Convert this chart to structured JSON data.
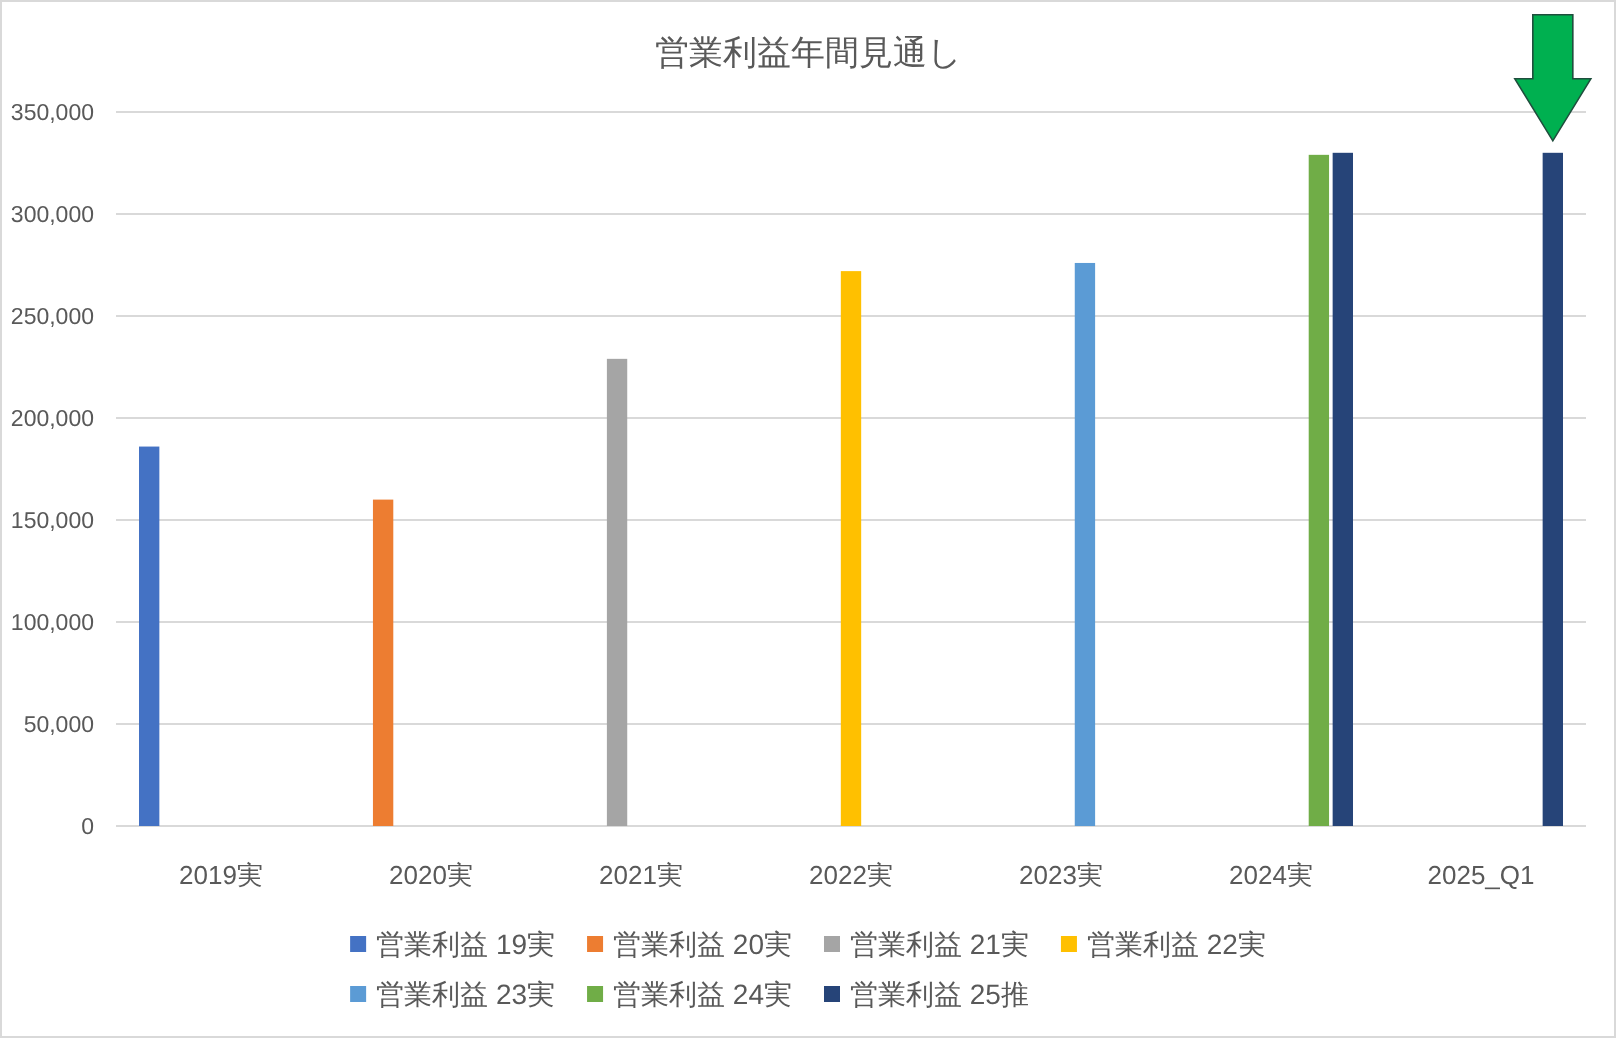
{
  "chart_data": {
    "type": "bar",
    "title": "営業利益年間見通し",
    "categories": [
      "2019実",
      "2020実",
      "2021実",
      "2022実",
      "2023実",
      "2024実",
      "2025_Q1"
    ],
    "series": [
      {
        "name": "営業利益 19実",
        "color": "#4472c4",
        "values": [
          186000,
          null,
          null,
          null,
          null,
          null,
          null
        ]
      },
      {
        "name": "営業利益 20実",
        "color": "#ed7d31",
        "values": [
          null,
          160000,
          null,
          null,
          null,
          null,
          null
        ]
      },
      {
        "name": "営業利益 21実",
        "color": "#a5a5a5",
        "values": [
          null,
          null,
          229000,
          null,
          null,
          null,
          null
        ]
      },
      {
        "name": "営業利益 22実",
        "color": "#ffc000",
        "values": [
          null,
          null,
          null,
          272000,
          null,
          null,
          null
        ]
      },
      {
        "name": "営業利益 23実",
        "color": "#5b9bd5",
        "values": [
          null,
          null,
          null,
          null,
          276000,
          null,
          null
        ]
      },
      {
        "name": "営業利益 24実",
        "color": "#70ad47",
        "values": [
          null,
          null,
          null,
          null,
          null,
          329000,
          null
        ]
      },
      {
        "name": "営業利益 25推",
        "color": "#264478",
        "values": [
          null,
          null,
          null,
          null,
          null,
          330000,
          330000
        ]
      }
    ],
    "ylim": [
      0,
      350000
    ],
    "yticks": [
      0,
      {
        "value": 50000,
        "label": "50,000"
      },
      {
        "value": 100000,
        "label": "100,000"
      },
      {
        "value": 150000,
        "label": "150,000"
      },
      {
        "value": 200000,
        "label": "200,000"
      },
      {
        "value": 250000,
        "label": "250,000"
      },
      {
        "value": 300000,
        "label": "300,000"
      },
      {
        "value": 350000,
        "label": "350,000"
      }
    ],
    "grid": "y",
    "legend": "bottom"
  }
}
